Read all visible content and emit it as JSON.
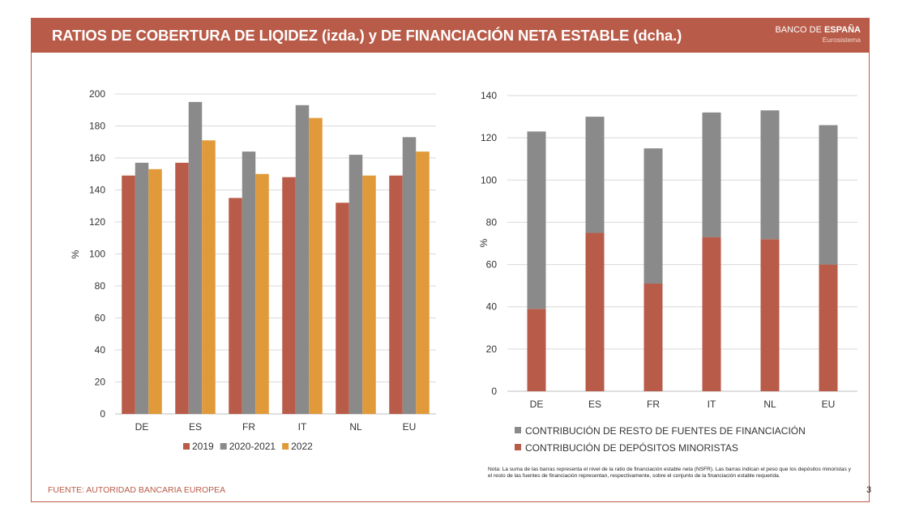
{
  "header": {
    "title": "RATIOS DE COBERTURA DE LIQIDEZ (izda.) y DE FINANCIACIÓN NETA ESTABLE (dcha.)",
    "brand_banco": "BANCO DE ",
    "brand_espana": "ESPAÑA",
    "brand_sub": "Eurosistema"
  },
  "footer": {
    "source": "FUENTE: AUTORIDAD BANCARIA EUROPEA",
    "note": "Nota: La suma de las barras representa el nivel de la ratio de financiación estable neta (NSFR). Las barras indican el peso que los depósitos minoristas y el resto de las fuentes de financiación representan, respectivamente, sobre el conjunto de la financiación estable requerida.",
    "page_number": "3"
  },
  "colors": {
    "red": "#b85b48",
    "gray": "#8a8a8a",
    "orange": "#e09a3a",
    "grid": "#d9d9d9"
  },
  "chart_data": [
    {
      "type": "bar",
      "title": "",
      "ylabel": "%",
      "xlabel": "",
      "ylim": [
        0,
        200
      ],
      "yticks": [
        0,
        20,
        40,
        60,
        80,
        100,
        120,
        140,
        160,
        180,
        200
      ],
      "categories": [
        "DE",
        "ES",
        "FR",
        "IT",
        "NL",
        "EU"
      ],
      "series": [
        {
          "name": "2019",
          "color": "#b85b48",
          "values": [
            149,
            157,
            135,
            148,
            132,
            149
          ]
        },
        {
          "name": "2020-2021",
          "color": "#8a8a8a",
          "values": [
            157,
            195,
            164,
            193,
            162,
            173
          ]
        },
        {
          "name": "2022",
          "color": "#e09a3a",
          "values": [
            153,
            171,
            150,
            185,
            149,
            164
          ]
        }
      ],
      "legend": "bottom",
      "grid": true
    },
    {
      "type": "bar",
      "stacked": true,
      "title": "",
      "ylabel": "%",
      "xlabel": "",
      "ylim": [
        0,
        140
      ],
      "yticks": [
        0,
        20,
        40,
        60,
        80,
        100,
        120,
        140
      ],
      "categories": [
        "DE",
        "ES",
        "FR",
        "IT",
        "NL",
        "EU"
      ],
      "series": [
        {
          "name": "CONTRIBUCIÓN DE DEPÓSITOS MINORISTAS",
          "color": "#b85b48",
          "values": [
            39,
            75,
            51,
            73,
            72,
            60
          ]
        },
        {
          "name": "CONTRIBUCIÓN DE RESTO DE FUENTES DE FINANCIACIÓN",
          "color": "#8a8a8a",
          "values": [
            84,
            55,
            64,
            59,
            61,
            66
          ]
        }
      ],
      "legend": "bottom",
      "grid": true
    }
  ]
}
